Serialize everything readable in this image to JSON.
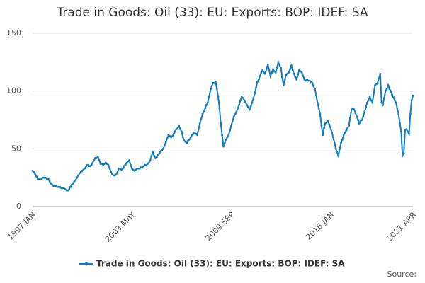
{
  "chart_data": {
    "type": "line",
    "title": "Trade in Goods: Oil (33): EU: Exports: BOP: IDEF: SA",
    "source_label": "Source:",
    "categories": [
      "1997 JAN",
      null,
      null,
      null,
      null,
      null,
      null,
      null,
      null,
      null,
      null,
      null,
      null,
      null,
      null,
      null,
      null,
      null,
      null,
      null,
      null,
      null,
      null,
      null,
      null,
      null,
      null,
      null,
      null,
      null,
      null,
      null,
      null,
      null,
      null,
      null,
      null,
      null,
      null,
      null,
      null,
      null,
      null,
      null,
      null,
      null,
      null,
      null,
      null,
      null,
      null,
      null,
      null,
      null,
      null,
      null,
      null,
      null,
      null,
      null,
      null,
      null,
      null,
      null,
      null,
      null,
      null,
      null,
      null,
      null,
      null,
      null,
      null,
      null,
      null,
      null,
      "2003 MAY",
      null,
      null,
      null,
      null,
      null,
      null,
      null,
      null,
      null,
      null,
      null,
      null,
      null,
      null,
      null,
      null,
      null,
      null,
      null,
      null,
      null,
      null,
      null,
      null,
      null,
      null,
      null,
      null,
      null,
      null,
      null,
      null,
      null,
      null,
      null,
      null,
      null,
      null,
      null,
      null,
      null,
      null,
      null,
      null,
      null,
      null,
      null,
      null,
      null,
      null,
      null,
      null,
      null,
      null,
      null,
      null,
      null,
      null,
      null,
      null,
      null,
      null,
      null,
      null,
      null,
      null,
      null,
      null,
      null,
      null,
      null,
      null,
      null,
      null,
      null,
      "2009 SEP",
      null,
      null,
      null,
      null,
      null,
      null,
      null,
      null,
      null,
      null,
      null,
      null,
      null,
      null,
      null,
      null,
      null,
      null,
      null,
      null,
      null,
      null,
      null,
      null,
      null,
      null,
      null,
      null,
      null,
      null,
      null,
      null,
      null,
      null,
      null,
      null,
      null,
      null,
      null,
      null,
      null,
      null,
      null,
      null,
      null,
      null,
      null,
      null,
      null,
      null,
      null,
      null,
      null,
      null,
      null,
      null,
      null,
      null,
      null,
      null,
      null,
      null,
      null,
      null,
      null,
      null,
      null,
      null,
      null,
      null,
      null,
      null,
      null,
      null,
      null,
      "2016 JAN",
      null,
      null,
      null,
      null,
      null,
      null,
      null,
      null,
      null,
      null,
      null,
      null,
      null,
      null,
      null,
      null,
      null,
      null,
      null,
      null,
      null,
      null,
      null,
      null,
      null,
      null,
      null,
      null,
      null,
      null,
      null,
      null,
      null,
      null,
      null,
      null,
      null,
      null,
      null,
      null,
      null,
      null,
      null,
      null,
      null,
      null,
      null,
      null,
      null,
      null,
      null,
      null,
      null,
      null,
      null,
      null,
      null,
      null,
      null,
      null,
      null,
      null,
      "2021 APR"
    ],
    "series": [
      {
        "name": "Trade in Goods: Oil (33): EU: Exports: BOP: IDEF: SA",
        "color": "#137cbd",
        "values": [
          31,
          30,
          28,
          26,
          24,
          24,
          24,
          24,
          25,
          25,
          25,
          24,
          24,
          22,
          20,
          19,
          18,
          18,
          18,
          17,
          17,
          17,
          16,
          16,
          16,
          15,
          14,
          14,
          15,
          17,
          19,
          20,
          22,
          23,
          25,
          27,
          29,
          30,
          31,
          32,
          33,
          35,
          36,
          35,
          35,
          36,
          38,
          40,
          42,
          42,
          43,
          40,
          37,
          37,
          36,
          37,
          38,
          37,
          36,
          33,
          30,
          28,
          27,
          27,
          28,
          30,
          33,
          33,
          32,
          33,
          35,
          36,
          38,
          39,
          40,
          36,
          33,
          32,
          31,
          32,
          33,
          33,
          33,
          34,
          34,
          35,
          36,
          36,
          37,
          38,
          40,
          44,
          47,
          44,
          42,
          43,
          45,
          46,
          48,
          49,
          50,
          53,
          56,
          59,
          62,
          61,
          60,
          61,
          63,
          65,
          67,
          68,
          70,
          67,
          65,
          60,
          57,
          56,
          55,
          57,
          58,
          60,
          62,
          63,
          64,
          63,
          62,
          67,
          72,
          76,
          80,
          82,
          85,
          88,
          90,
          95,
          100,
          104,
          107,
          107,
          108,
          102,
          95,
          85,
          72,
          62,
          52,
          55,
          58,
          60,
          62,
          66,
          70,
          74,
          78,
          80,
          82,
          85,
          88,
          92,
          95,
          94,
          92,
          90,
          88,
          86,
          84,
          87,
          90,
          94,
          98,
          103,
          108,
          110,
          113,
          116,
          118,
          116,
          115,
          119,
          123,
          118,
          113,
          116,
          119,
          117,
          116,
          120,
          125,
          122,
          120,
          112,
          105,
          110,
          114,
          115,
          116,
          119,
          122,
          118,
          115,
          112,
          110,
          114,
          118,
          117,
          116,
          113,
          110,
          109,
          110,
          109,
          109,
          108,
          107,
          104,
          102,
          96,
          90,
          85,
          80,
          70,
          62,
          68,
          72,
          73,
          74,
          71,
          68,
          64,
          60,
          55,
          50,
          47,
          44,
          50,
          55,
          58,
          62,
          64,
          66,
          68,
          70,
          77,
          84,
          85,
          84,
          81,
          78,
          75,
          72,
          74,
          75,
          78,
          82,
          86,
          90,
          92,
          95,
          92,
          90,
          98,
          105,
          106,
          107,
          111,
          115,
          90,
          88,
          94,
          100,
          102,
          105,
          102,
          100,
          97,
          95,
          92,
          90,
          85,
          80,
          72,
          65,
          44,
          46,
          66,
          67,
          65,
          63,
          80,
          92,
          96
        ]
      }
    ],
    "ylim": [
      0,
      150
    ],
    "yticks": [
      0,
      50,
      100,
      150
    ],
    "grid": true
  }
}
